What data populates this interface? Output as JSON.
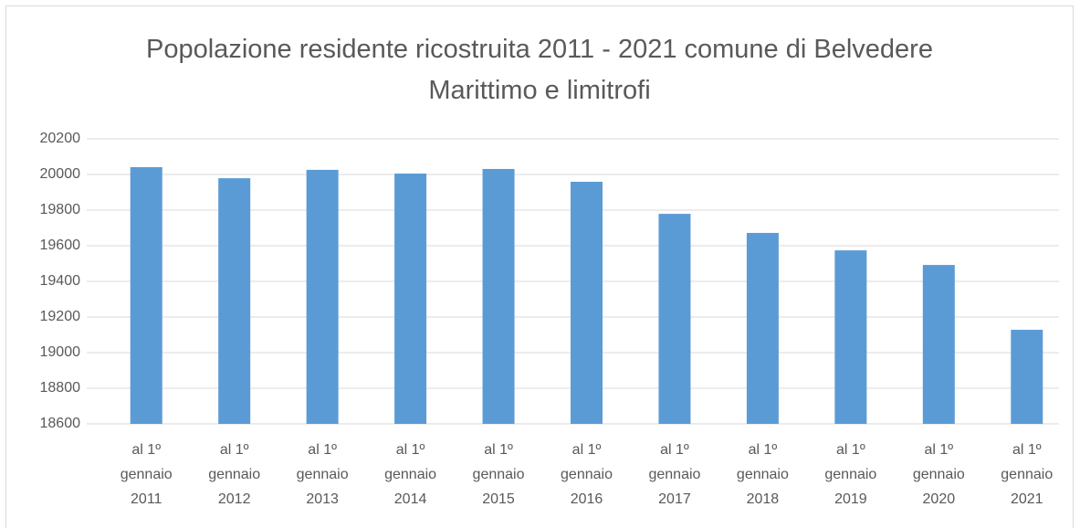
{
  "chart_data": {
    "type": "bar",
    "title": "Popolazione residente ricostruita 2011 - 2021 comune di Belvedere Marittimo e limitrofi",
    "categories": [
      "al 1º gennaio 2011",
      "al 1º gennaio 2012",
      "al 1º gennaio 2013",
      "al 1º gennaio 2014",
      "al 1º gennaio 2015",
      "al 1º gennaio 2016",
      "al 1º gennaio 2017",
      "al 1º gennaio 2018",
      "al 1º gennaio 2019",
      "al 1º gennaio 2020",
      "al 1º gennaio 2021"
    ],
    "values": [
      20041,
      19979,
      20026,
      20005,
      20031,
      19959,
      19779,
      19672,
      19574,
      19492,
      19128
    ],
    "color": "#5b9bd5",
    "ylim": [
      18600,
      20200
    ],
    "yticks": [
      18600,
      18800,
      19000,
      19200,
      19400,
      19600,
      19800,
      20000,
      20200
    ],
    "grid": true
  }
}
